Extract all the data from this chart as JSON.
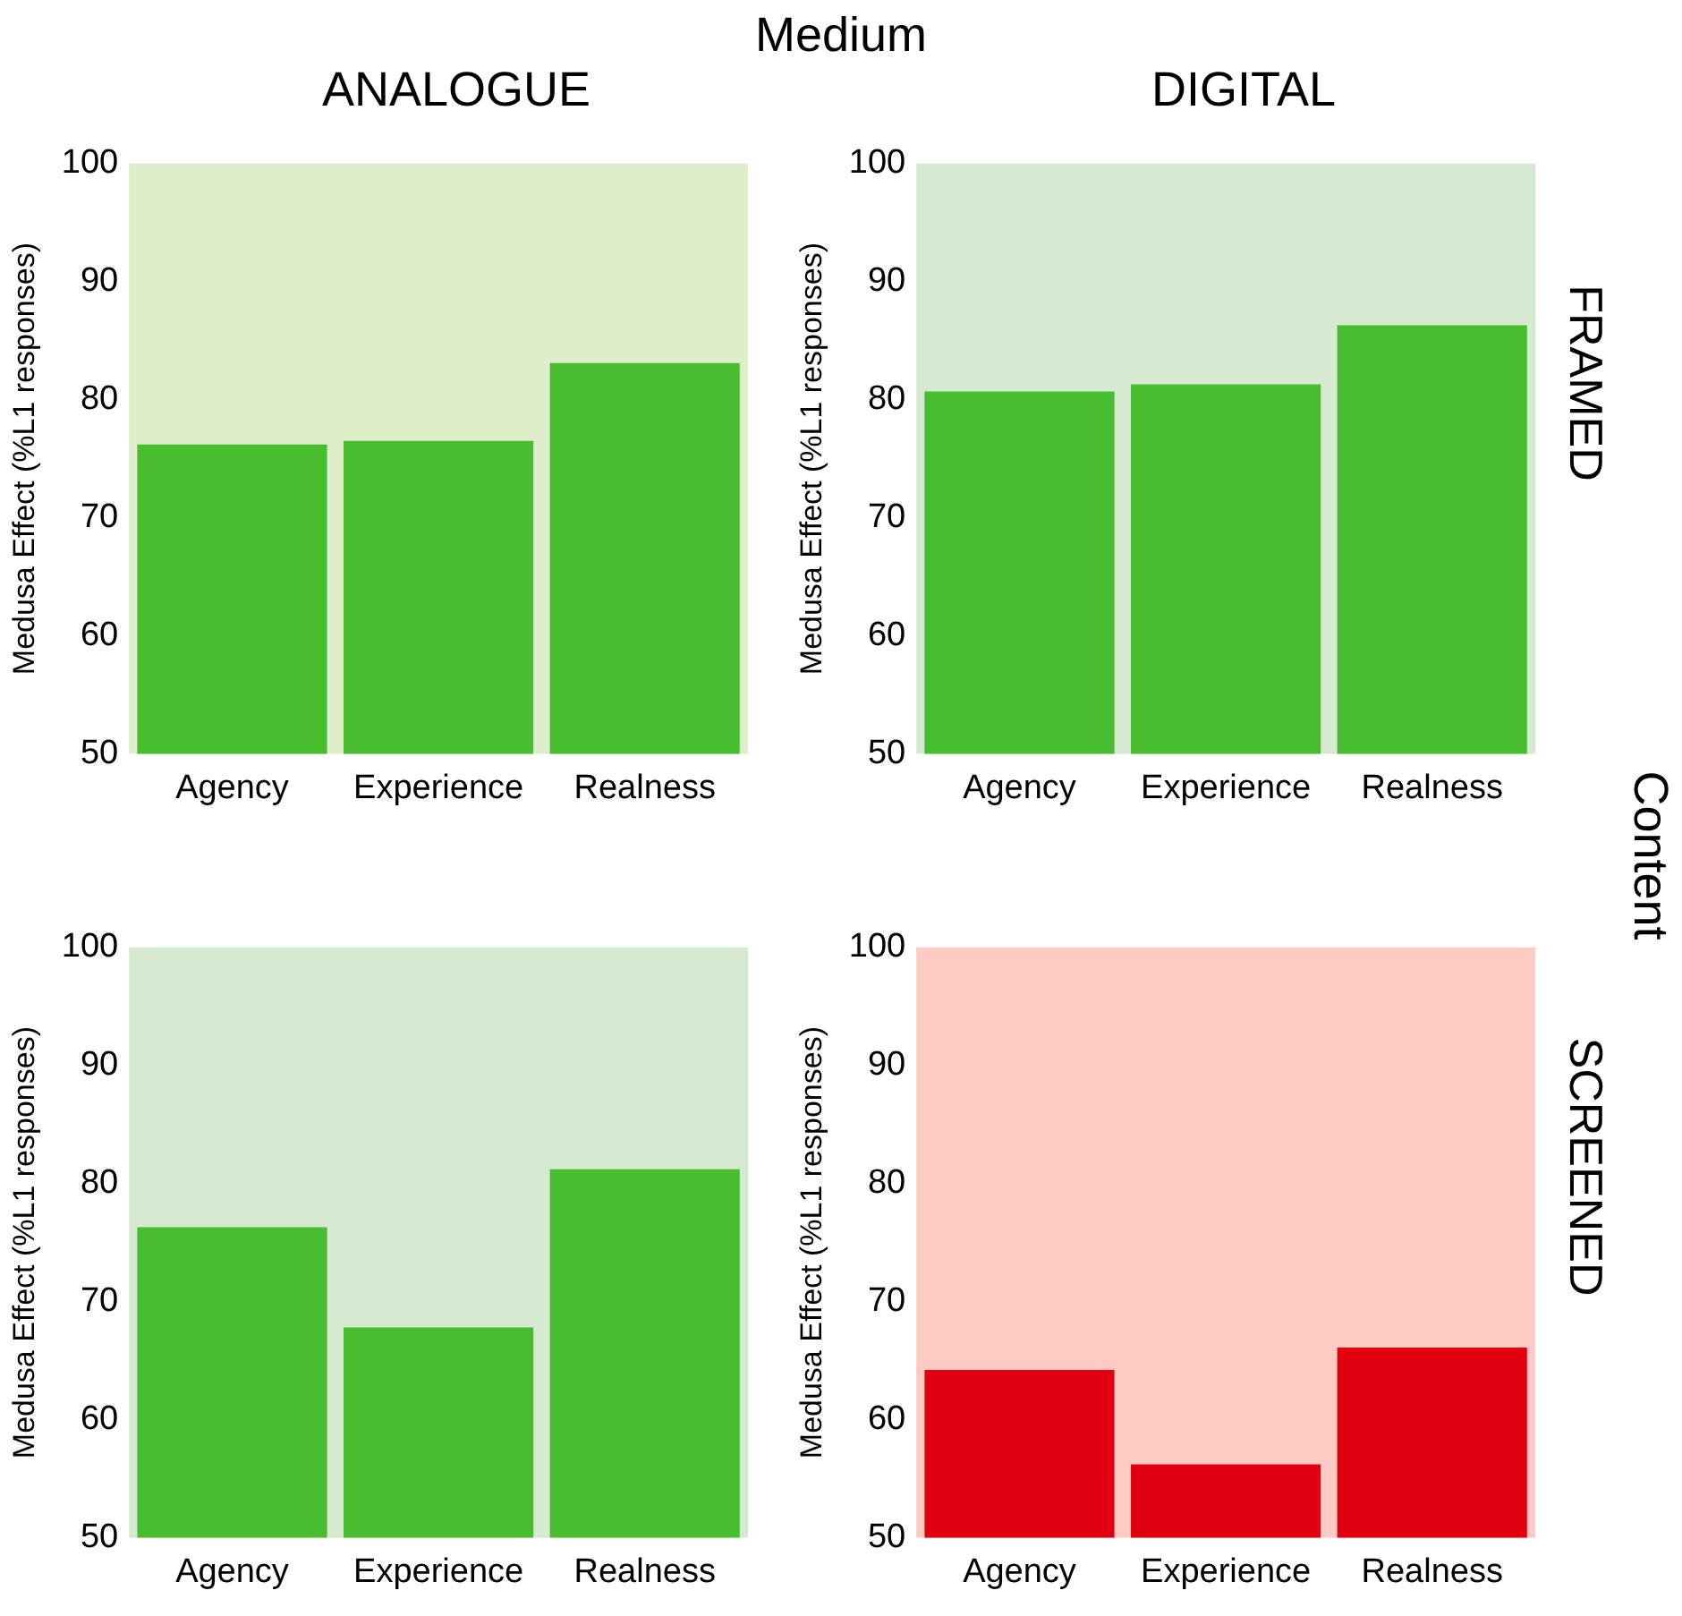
{
  "chart_data": [
    {
      "type": "bar",
      "title": "ANALOGUE",
      "annotations": [
        "Medium"
      ],
      "ylabel": "Medusa Effect (%L1 responses)",
      "categories": [
        "Agency",
        "Experience",
        "Realness"
      ],
      "values": [
        76.2,
        76.5,
        83.1
      ],
      "color": "#47bd2f",
      "ylim": [
        50,
        100
      ],
      "yticks": [
        50,
        60,
        70,
        80,
        90,
        100
      ],
      "bands": [
        {
          "axis": "y",
          "from": 50,
          "to": 100,
          "color": "#deedca"
        }
      ],
      "grid": false,
      "legend": false
    },
    {
      "type": "bar",
      "title": "DIGITAL",
      "annotations": [
        "Content"
      ],
      "y2label": "FRAMED",
      "ylabel": "Medusa Effect (%L1 responses)",
      "categories": [
        "Agency",
        "Experience",
        "Realness"
      ],
      "values": [
        80.7,
        81.3,
        86.3
      ],
      "color": "#47bd2f",
      "ylim": [
        50,
        100
      ],
      "yticks": [
        50,
        60,
        70,
        80,
        90,
        100
      ],
      "bands": [
        {
          "axis": "y",
          "from": 50,
          "to": 100,
          "color": "#d5ead0"
        }
      ],
      "grid": false,
      "legend": false
    },
    {
      "type": "bar",
      "ylabel": "Medusa Effect (%L1 responses)",
      "categories": [
        "Agency",
        "Experience",
        "Realness"
      ],
      "values": [
        76.3,
        67.8,
        81.2
      ],
      "color": "#47bd2f",
      "ylim": [
        50,
        100
      ],
      "yticks": [
        50,
        60,
        70,
        80,
        90,
        100
      ],
      "bands": [
        {
          "axis": "y",
          "from": 50,
          "to": 100,
          "color": "#d5ead0"
        }
      ],
      "grid": false,
      "legend": false
    },
    {
      "type": "bar",
      "y2label": "SCREENED",
      "ylabel": "Medusa Effect (%L1 responses)",
      "categories": [
        "Agency",
        "Experience",
        "Realness"
      ],
      "values": [
        64.2,
        56.2,
        66.1
      ],
      "color": "#e0000f",
      "ylim": [
        50,
        100
      ],
      "yticks": [
        50,
        60,
        70,
        80,
        90,
        100
      ],
      "bands": [
        {
          "axis": "y",
          "from": 50,
          "to": 100,
          "color": "#fdcbc4"
        }
      ],
      "grid": false,
      "legend": false
    }
  ]
}
